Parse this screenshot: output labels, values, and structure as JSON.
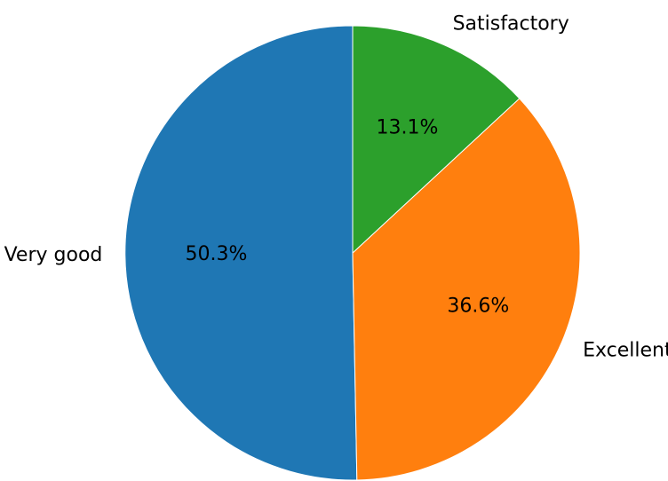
{
  "chart_data": {
    "type": "pie",
    "categories": [
      "Very good",
      "Excellent",
      "Satisfactory"
    ],
    "values": [
      50.3,
      36.6,
      13.1
    ],
    "labels": [
      "50.3%",
      "36.6%",
      "13.1%"
    ],
    "colors": [
      "#1f77b4",
      "#ff7f0e",
      "#2ca02c"
    ],
    "start": "top",
    "direction": "counterclockwise",
    "title": ""
  }
}
